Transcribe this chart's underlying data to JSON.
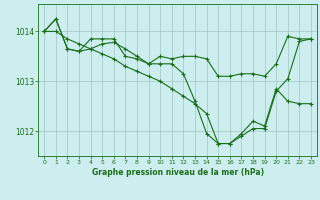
{
  "title": "Graphe pression niveau de la mer (hPa)",
  "bg_color": "#cceeee",
  "grid_color": "#aacccc",
  "line_color": "#1a6e1a",
  "xlim": [
    -0.5,
    23.5
  ],
  "ylim": [
    1011.5,
    1014.55
  ],
  "yticks": [
    1012,
    1013,
    1014
  ],
  "xticks": [
    0,
    1,
    2,
    3,
    4,
    5,
    6,
    7,
    8,
    9,
    10,
    11,
    12,
    13,
    14,
    15,
    16,
    17,
    18,
    19,
    20,
    21,
    22,
    23
  ],
  "series": [
    {
      "x": [
        0,
        1,
        2,
        3,
        4,
        5,
        6,
        7,
        8,
        9,
        10,
        11,
        12,
        13,
        14,
        15,
        16,
        17,
        18,
        19,
        20,
        21,
        22,
        23
      ],
      "y": [
        1014.0,
        1014.25,
        1013.65,
        1013.6,
        1013.65,
        1013.75,
        1013.78,
        1013.65,
        1013.5,
        1013.35,
        1013.35,
        1013.35,
        1013.15,
        1012.6,
        1011.95,
        1011.75,
        1011.75,
        1011.9,
        1012.05,
        1012.05,
        1012.8,
        1013.05,
        1013.8,
        1013.85
      ],
      "marker": "+"
    },
    {
      "x": [
        0,
        1,
        2,
        3,
        4,
        5,
        6,
        7,
        8,
        9,
        10,
        11,
        12,
        13,
        14,
        15,
        16,
        17,
        18,
        19,
        20,
        21,
        22,
        23
      ],
      "y": [
        1014.0,
        1014.25,
        1013.65,
        1013.6,
        1013.85,
        1013.85,
        1013.85,
        1013.5,
        1013.45,
        1013.35,
        1013.5,
        1013.45,
        1013.5,
        1013.5,
        1013.45,
        1013.1,
        1013.1,
        1013.15,
        1013.15,
        1013.1,
        1013.35,
        1013.9,
        1013.85,
        1013.85
      ],
      "marker": "+"
    },
    {
      "x": [
        0,
        1,
        2,
        3,
        4,
        5,
        6,
        7,
        8,
        9,
        10,
        11,
        12,
        13,
        14,
        15,
        16,
        17,
        18,
        19,
        20,
        21,
        22,
        23
      ],
      "y": [
        1014.0,
        1014.0,
        1013.85,
        1013.75,
        1013.65,
        1013.55,
        1013.45,
        1013.3,
        1013.2,
        1013.1,
        1013.0,
        1012.85,
        1012.7,
        1012.55,
        1012.35,
        1011.75,
        1011.75,
        1011.95,
        1012.2,
        1012.1,
        1012.85,
        1012.6,
        1012.55,
        1012.55
      ],
      "marker": "+"
    }
  ]
}
